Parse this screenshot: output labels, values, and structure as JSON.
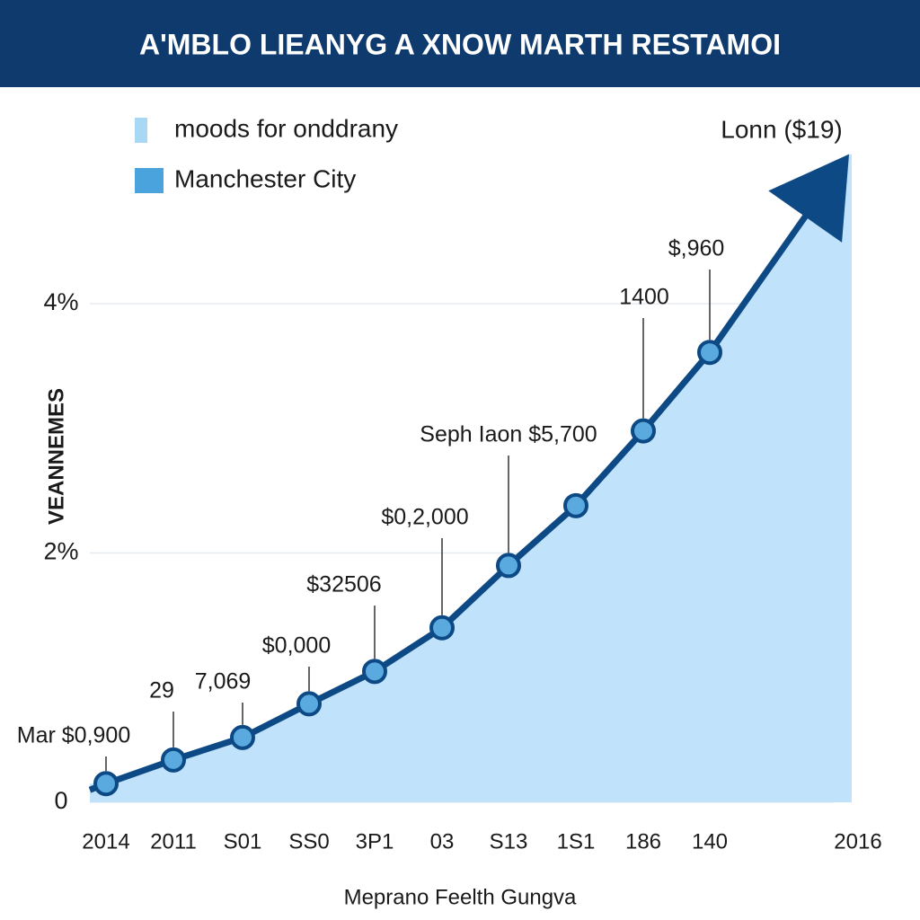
{
  "chart_data": {
    "type": "area",
    "title": "A'MBLO LIEANYG A XNOW MARTH RESTAMOI",
    "corner_label": "Lonn ($19)",
    "y_label": "VEANNEMES",
    "x_label": "Meprano Feelth Gungva",
    "legend": [
      {
        "name": "moods for onddrany",
        "color": "#a9d8f5"
      },
      {
        "name": "Manchester City",
        "color": "#4aa3dd"
      }
    ],
    "categories": [
      "2014",
      "2011",
      "S01",
      "SS0",
      "3P1",
      "03",
      "S13",
      "1S1",
      "186",
      "140",
      "2016"
    ],
    "series": [
      {
        "color": "#0d4a85",
        "fill": "#c0e2fa",
        "marker_color": "#5aaae0",
        "values": [
          0.15,
          0.34,
          0.52,
          0.79,
          1.05,
          1.4,
          1.9,
          2.38,
          2.98,
          3.61,
          5.2
        ]
      }
    ],
    "annotations": [
      "Mar $0,900",
      "29",
      "7,069",
      "$0,000",
      "$32506",
      "$0,2,000",
      "Seph Iaon $5,700",
      null,
      "1400",
      "$,960",
      null
    ],
    "ylim": [
      0,
      5.5
    ],
    "yticks": [
      0,
      {
        "value": 2,
        "label": "2%"
      },
      {
        "value": 4,
        "label": "4%"
      }
    ],
    "grid": true
  }
}
